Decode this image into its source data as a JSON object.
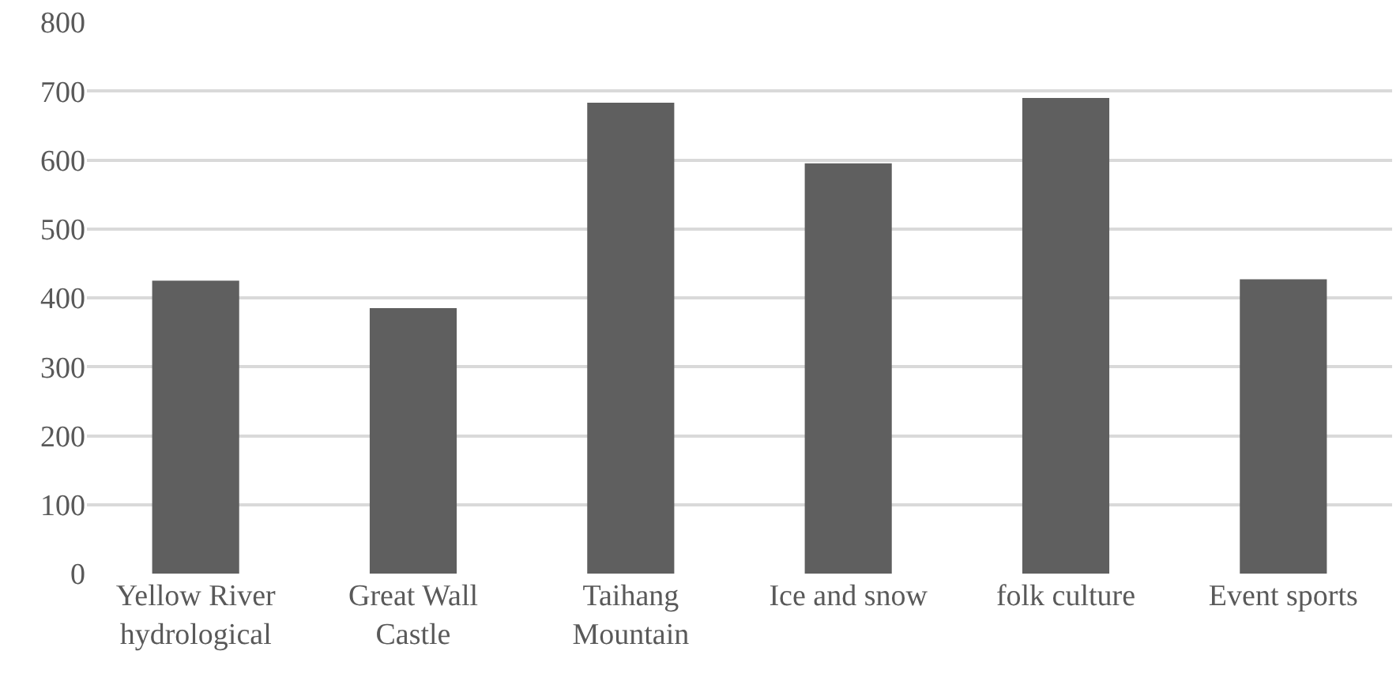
{
  "chart_data": {
    "type": "bar",
    "categories": [
      "Yellow River hydrological",
      "Great Wall Castle",
      "Taihang Mountain",
      "Ice and snow",
      "folk culture",
      "Event sports"
    ],
    "values": [
      425,
      385,
      683,
      595,
      690,
      427
    ],
    "color": "#5f5f5f",
    "ylim": [
      0,
      800
    ],
    "yticks": [
      0,
      100,
      200,
      300,
      400,
      500,
      600,
      700,
      800
    ],
    "grid": "y"
  }
}
